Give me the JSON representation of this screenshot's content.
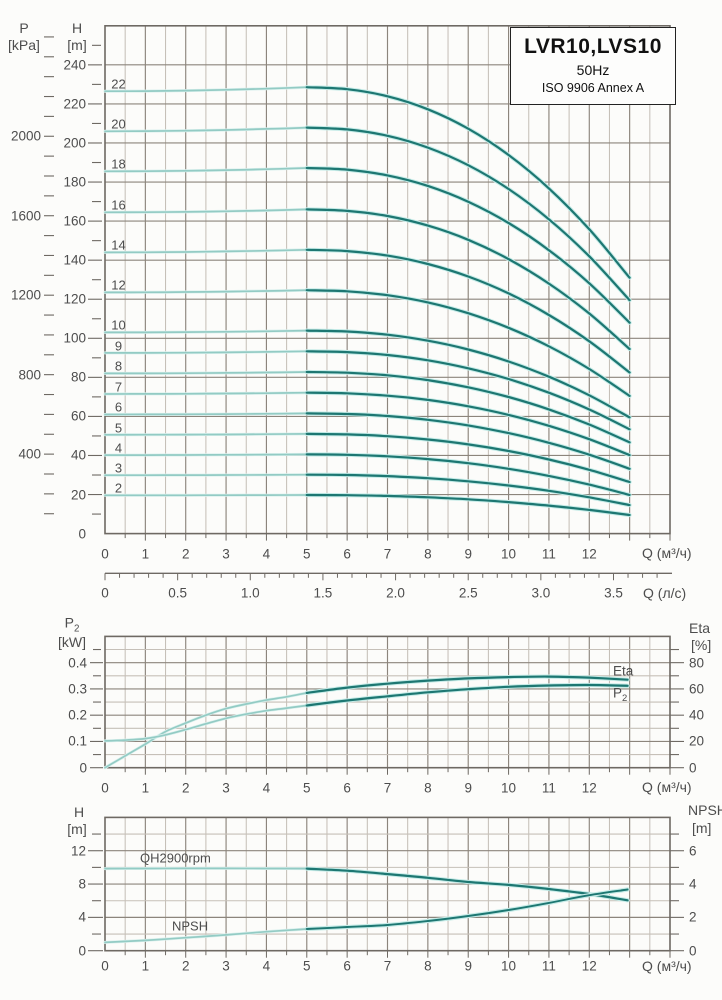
{
  "title_box": {
    "model": "LVR10,LVS10",
    "frequency": "50Hz",
    "standard": "ISO 9906 Annex A"
  },
  "axis_titles": {
    "main_pressure": {
      "symbol": "P",
      "unit": "[kPa]"
    },
    "main_head": {
      "symbol": "H",
      "unit": "[m]"
    },
    "main_flow": "Q (м³/ч)",
    "main_flow2": "Q (л/с)",
    "mid_power": {
      "symbol": "P",
      "sub": "2",
      "unit": "[kW]"
    },
    "mid_eff": {
      "symbol": "Eta",
      "unit": "[%]"
    },
    "mid_flow": "Q (м³/ч)",
    "bot_head": {
      "symbol": "H",
      "unit": "[m]"
    },
    "bot_npsh": {
      "symbol": "NPSH",
      "unit": "[m]"
    },
    "bot_flow": "Q (м³/ч)"
  },
  "colors": {
    "curve_dark": "#1d7772",
    "curve_light": "#93cbc4",
    "curve_halo": "#c5ebe7",
    "curve_halo_light": "#dbf1ee",
    "grid_major": "#8c857c",
    "grid_minor": "#c6c0b8",
    "border": "#6e6963",
    "text": "#4d4d4d"
  },
  "chart_data": [
    {
      "id": "main-qh",
      "type": "line",
      "title": "",
      "x_axis": {
        "label": "Q (м³/ч)",
        "tick_labels": [
          "0",
          "1",
          "2",
          "3",
          "4",
          "5",
          "6",
          "7",
          "8",
          "9",
          "10",
          "11",
          "12"
        ],
        "range": [
          0,
          14
        ],
        "minor_step": 0.5
      },
      "x_axis2": {
        "label": "Q (л/с)",
        "tick_labels": [
          "0",
          "0.5",
          "1.0",
          "1.5",
          "2.0",
          "2.5",
          "3.0",
          "3.5"
        ],
        "tick_values": [
          0,
          0.5,
          1,
          1.5,
          2,
          2.5,
          3,
          3.5
        ],
        "range": [
          0,
          3.9
        ]
      },
      "y_left": {
        "label": "H [m]",
        "tick_labels": [
          "0",
          "20",
          "40",
          "60",
          "80",
          "100",
          "120",
          "140",
          "160",
          "180",
          "200",
          "220",
          "240"
        ],
        "tick_values": [
          0,
          20,
          40,
          60,
          80,
          100,
          120,
          140,
          160,
          180,
          200,
          220,
          240
        ],
        "range": [
          0,
          260
        ],
        "minor_step": 10
      },
      "y_far_left": {
        "label": "P [kPa]",
        "tick_labels": [
          "400",
          "800",
          "1200",
          "1600",
          "2000"
        ],
        "tick_values": [
          400,
          800,
          1200,
          1600,
          2000
        ],
        "range": [
          0,
          2556
        ],
        "minor_step": 100
      },
      "duty_start_q": 5,
      "q_end": 13.0,
      "stages": [
        {
          "label": "2",
          "h0": 19.6,
          "h_end": 9.5
        },
        {
          "label": "3",
          "h0": 29.9,
          "h_end": 14.6
        },
        {
          "label": "4",
          "h0": 40.2,
          "h_end": 19.8
        },
        {
          "label": "5",
          "h0": 50.6,
          "h_end": 26.4
        },
        {
          "label": "6",
          "h0": 61.0,
          "h_end": 33.2
        },
        {
          "label": "7",
          "h0": 71.5,
          "h_end": 40.2
        },
        {
          "label": "8",
          "h0": 82.0,
          "h_end": 46.7
        },
        {
          "label": "9",
          "h0": 92.5,
          "h_end": 53.4
        },
        {
          "label": "10",
          "h0": 103.0,
          "h_end": 59.5
        },
        {
          "label": "12",
          "h0": 123.5,
          "h_end": 70.5
        },
        {
          "label": "14",
          "h0": 144.0,
          "h_end": 82.5
        },
        {
          "label": "16",
          "h0": 164.5,
          "h_end": 94.5
        },
        {
          "label": "18",
          "h0": 185.5,
          "h_end": 108.0
        },
        {
          "label": "20",
          "h0": 206.0,
          "h_end": 119.5
        },
        {
          "label": "22",
          "h0": 226.5,
          "h_end": 131.0
        }
      ]
    },
    {
      "id": "power-efficiency",
      "type": "line",
      "x_axis": {
        "label": "Q (м³/ч)",
        "tick_labels": [
          "0",
          "1",
          "2",
          "3",
          "4",
          "5",
          "6",
          "7",
          "8",
          "9",
          "10",
          "11",
          "12"
        ],
        "range": [
          0,
          14
        ],
        "minor_step": 0.5
      },
      "y_left": {
        "label": "P2 [kW]",
        "tick_labels": [
          "0",
          "0.1",
          "0.2",
          "0.3",
          "0.4"
        ],
        "tick_values": [
          0,
          0.1,
          0.2,
          0.3,
          0.4
        ],
        "range": [
          0,
          0.5
        ],
        "minor_step": 0.05
      },
      "y_right": {
        "label": "Eta [%]",
        "tick_labels": [
          "0",
          "20",
          "40",
          "60",
          "80"
        ],
        "tick_values": [
          0,
          20,
          40,
          60,
          80
        ],
        "range": [
          0,
          100
        ],
        "minor_step": 10
      },
      "series": [
        {
          "name": "Eta",
          "sub": "",
          "axis": "right",
          "points": [
            [
              0,
              0
            ],
            [
              0.5,
              9
            ],
            [
              1,
              18
            ],
            [
              1.5,
              27.5
            ],
            [
              2,
              34
            ],
            [
              2.5,
              40
            ],
            [
              3,
              45
            ],
            [
              3.5,
              48.5
            ],
            [
              4,
              51.5
            ],
            [
              4.5,
              54
            ],
            [
              5,
              57
            ],
            [
              6,
              61
            ],
            [
              7,
              64
            ],
            [
              8,
              66.3
            ],
            [
              9,
              68
            ],
            [
              10,
              69
            ],
            [
              11,
              69.4
            ],
            [
              12,
              68.6
            ],
            [
              12.95,
              67
            ]
          ]
        },
        {
          "name": "P",
          "sub": "2",
          "axis": "left",
          "points": [
            [
              0,
              0.102
            ],
            [
              0.5,
              0.105
            ],
            [
              1,
              0.111
            ],
            [
              1.5,
              0.125
            ],
            [
              2,
              0.145
            ],
            [
              2.5,
              0.167
            ],
            [
              3,
              0.188
            ],
            [
              3.5,
              0.204
            ],
            [
              4,
              0.217
            ],
            [
              4.5,
              0.227
            ],
            [
              5,
              0.237
            ],
            [
              6,
              0.256
            ],
            [
              7,
              0.272
            ],
            [
              8,
              0.287
            ],
            [
              9,
              0.299
            ],
            [
              10,
              0.308
            ],
            [
              11,
              0.313
            ],
            [
              12,
              0.315
            ],
            [
              12.95,
              0.312
            ]
          ]
        }
      ]
    },
    {
      "id": "qh-npsh",
      "type": "line",
      "x_axis": {
        "label": "Q (м³/ч)",
        "tick_labels": [
          "0",
          "1",
          "2",
          "3",
          "4",
          "5",
          "6",
          "7",
          "8",
          "9",
          "10",
          "11",
          "12"
        ],
        "range": [
          0,
          14
        ],
        "minor_step": 0.5
      },
      "y_left": {
        "label": "H [m]",
        "tick_labels": [
          "0",
          "4",
          "8",
          "12"
        ],
        "tick_values": [
          0,
          4,
          8,
          12
        ],
        "range": [
          0,
          16
        ],
        "minor_step": 2
      },
      "y_right": {
        "label": "NPSH [m]",
        "tick_labels": [
          "0",
          "2",
          "4",
          "6"
        ],
        "tick_values": [
          0,
          2,
          4,
          6
        ],
        "range": [
          0,
          8
        ],
        "minor_step": 1
      },
      "series": [
        {
          "name": "QH2900rpm",
          "axis": "left",
          "points": [
            [
              0,
              9.85
            ],
            [
              1,
              9.87
            ],
            [
              2,
              9.88
            ],
            [
              3,
              9.88
            ],
            [
              4,
              9.87
            ],
            [
              5,
              9.85
            ],
            [
              6,
              9.6
            ],
            [
              7,
              9.2
            ],
            [
              8,
              8.75
            ],
            [
              9,
              8.25
            ],
            [
              10,
              7.9
            ],
            [
              11,
              7.4
            ],
            [
              12,
              6.8
            ],
            [
              12.95,
              6.05
            ]
          ]
        },
        {
          "name": "NPSH",
          "axis": "right",
          "w": 1.9,
          "points": [
            [
              0,
              0.5
            ],
            [
              1,
              0.62
            ],
            [
              2,
              0.78
            ],
            [
              3,
              0.95
            ],
            [
              4,
              1.14
            ],
            [
              5,
              1.3
            ],
            [
              6,
              1.42
            ],
            [
              7,
              1.54
            ],
            [
              8,
              1.78
            ],
            [
              9,
              2.08
            ],
            [
              10,
              2.44
            ],
            [
              11,
              2.87
            ],
            [
              12,
              3.33
            ],
            [
              12.95,
              3.67
            ]
          ]
        }
      ]
    }
  ]
}
